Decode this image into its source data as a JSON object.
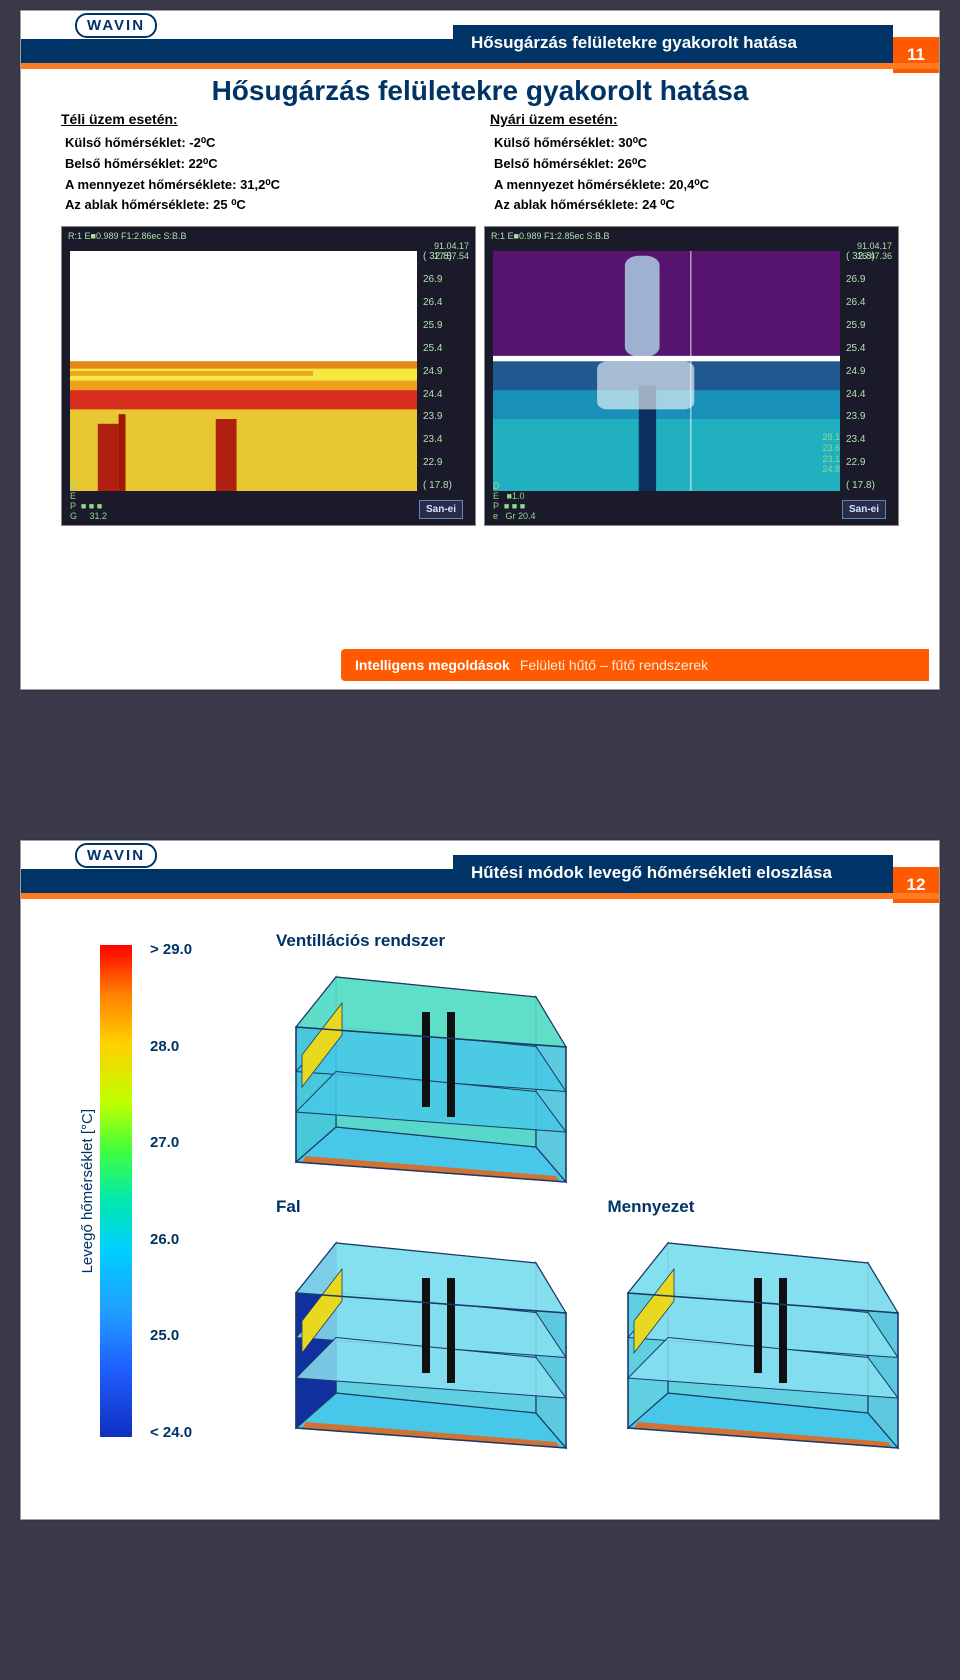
{
  "logo_text": "WAVIN",
  "slide1": {
    "number": "11",
    "banner_title": "Hősugárzás felületekre gyakorolt hatása",
    "main_title": "Hősugárzás felületekre gyakorolt hatása",
    "left": {
      "heading": "Téli üzem esetén:",
      "l1": "Külső hőmérséklet: -2⁰C",
      "l2": "Belső hőmérséklet: 22⁰C",
      "l3": "A mennyezet hőmérséklete: 31,2⁰C",
      "l4": "Az ablak hőmérséklete: 25 ⁰C"
    },
    "right": {
      "heading": "Nyári üzem esetén:",
      "l1": "Külső hőmérséklet: 30⁰C",
      "l2": "Belső hőmérséklet: 26⁰C",
      "l3": "A mennyezet hőmérséklete: 20,4⁰C",
      "l4": "Az ablak hőmérséklete: 24 ⁰C"
    },
    "thermal": {
      "top_left_1": "R:1  E■0.989  F1:2.86ec  S:B.B",
      "time_left": "91.04.17\n17:57.54",
      "top_left_2": "R:1  E■0.989  F1:2.85ec  S:B.B",
      "time_right": "91.04.17\n16:47.36",
      "scale": [
        "( 32.8)",
        "26.9 ",
        "26.4",
        "25.9",
        "25.4",
        "24.9",
        "24.4",
        "23.9",
        "23.4",
        "22.9",
        "( 17.8)"
      ],
      "bottom_labels_right": [
        "28.1",
        "23.6",
        "23.1",
        "24.8"
      ],
      "menu": "D\nE\nP  ■ ■ ■\nG     31.2",
      "menu_r": "D\nE   ■1.0\nP  ■ ■ ■\ne   Gr 20.4",
      "brand": "San-ei"
    },
    "footer_a": "Intelligens megoldások",
    "footer_b": "Felületi hűtő – fűtő rendszerek"
  },
  "slide2": {
    "number": "12",
    "banner_title": "Hűtési módok levegő hőmérsékleti eloszlása",
    "ylabel": "Levegő hőmérséklet [°C]",
    "legend_labels": [
      "> 29.0",
      "28.0",
      "27.0",
      "26.0",
      "25.0",
      "< 24.0"
    ],
    "sim": {
      "vent": "Ventillációs rendszer",
      "fal": "Fal",
      "menny": "Mennyezet"
    },
    "cube_colors": {
      "floor_hot": "#e06820",
      "slab": "#48c8e8",
      "slab_light": "#88e0f0",
      "wall_left_dark": "#1030a0",
      "wall_back": "#60d0e0",
      "wall_right": "#40c0d8",
      "column": "#101010",
      "vent_yellow": "#e8d820",
      "outline": "#1a3a6a"
    }
  }
}
